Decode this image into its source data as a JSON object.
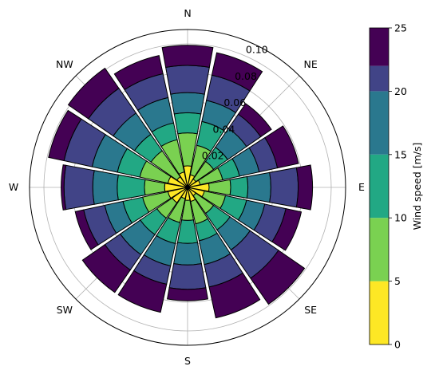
{
  "chart_data": {
    "type": "wind-rose",
    "directions": [
      "N",
      "NNE",
      "NE",
      "ENE",
      "E",
      "ESE",
      "SE",
      "SSE",
      "S",
      "SSW",
      "SW",
      "WSW",
      "W",
      "WNW",
      "NW",
      "NNW"
    ],
    "direction_labels": [
      "N",
      "NE",
      "E",
      "SE",
      "S",
      "SW",
      "W",
      "NW"
    ],
    "radial_ticks": [
      0.02,
      0.04,
      0.06,
      0.08,
      0.1
    ],
    "radial_tick_labels": [
      "0.02",
      "0.04",
      "0.06",
      "0.08",
      "0.10"
    ],
    "rlim": [
      0,
      0.11
    ],
    "speed_bins": [
      {
        "range": [
          0,
          5
        ],
        "color": "#fde725"
      },
      {
        "range": [
          5,
          10
        ],
        "color": "#7ad151"
      },
      {
        "range": [
          10,
          15
        ],
        "color": "#22a884"
      },
      {
        "range": [
          15,
          20
        ],
        "color": "#2a788e"
      },
      {
        "range": [
          20,
          22
        ],
        "color": "#414487"
      },
      {
        "range": [
          22,
          25
        ],
        "color": "#440154"
      }
    ],
    "cumulative_frequencies": [
      [
        0.015,
        0.038,
        0.052,
        0.066,
        0.085,
        0.099
      ],
      [
        0.009,
        0.03,
        0.047,
        0.062,
        0.08,
        0.096
      ],
      [
        0.007,
        0.022,
        0.034,
        0.05,
        0.062,
        0.071
      ],
      [
        0.009,
        0.025,
        0.037,
        0.051,
        0.064,
        0.079
      ],
      [
        0.015,
        0.03,
        0.042,
        0.058,
        0.077,
        0.087
      ],
      [
        0.012,
        0.027,
        0.042,
        0.055,
        0.07,
        0.081
      ],
      [
        0.007,
        0.022,
        0.036,
        0.053,
        0.077,
        0.099
      ],
      [
        0.01,
        0.026,
        0.038,
        0.055,
        0.071,
        0.093
      ],
      [
        0.009,
        0.023,
        0.039,
        0.054,
        0.071,
        0.079
      ],
      [
        0.008,
        0.025,
        0.04,
        0.056,
        0.069,
        0.089
      ],
      [
        0.013,
        0.026,
        0.04,
        0.057,
        0.07,
        0.089
      ],
      [
        0.014,
        0.032,
        0.046,
        0.059,
        0.074,
        0.08
      ],
      [
        0.016,
        0.03,
        0.049,
        0.066,
        0.086,
        0.088
      ],
      [
        0.014,
        0.034,
        0.05,
        0.068,
        0.088,
        0.099
      ],
      [
        0.009,
        0.031,
        0.045,
        0.063,
        0.084,
        0.101
      ],
      [
        0.011,
        0.034,
        0.046,
        0.064,
        0.081,
        0.094
      ]
    ],
    "grid": true,
    "colorbar": {
      "label": "Wind speed [m/s]",
      "ticks": [
        0,
        5,
        10,
        15,
        20,
        25
      ],
      "tick_labels": [
        "0",
        "5",
        "10",
        "15",
        "20",
        "25"
      ],
      "boundaries": [
        0,
        5,
        10,
        15,
        20,
        22,
        25
      ]
    }
  }
}
